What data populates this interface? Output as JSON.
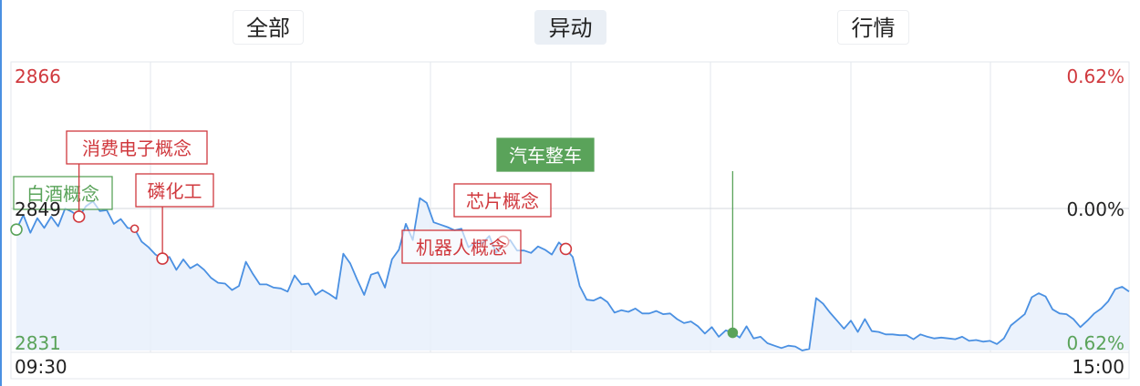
{
  "tabs": [
    {
      "label": "全部",
      "active": false
    },
    {
      "label": "异动",
      "active": true
    },
    {
      "label": "行情",
      "active": false
    }
  ],
  "chart_data": {
    "type": "line",
    "y_labels": {
      "top": "2866",
      "mid": "2849",
      "bottom": "2831"
    },
    "pct_labels": {
      "top": "0.62%",
      "mid": "0.00%",
      "bottom": "0.62%"
    },
    "x_labels": {
      "start": "09:30",
      "end": "15:00"
    },
    "ylim": [
      2831,
      2866
    ],
    "base": 2849,
    "colors": {
      "up": "#d0393e",
      "down": "#5aa35a",
      "line": "#4a90e2",
      "area": "#e7f0fb",
      "grid": "#e3e7ec"
    },
    "series": [
      {
        "values": [
          2846.0,
          2847.8,
          2845.6,
          2847.4,
          2846.2,
          2847.6,
          2846.4,
          2848.6,
          2848.2,
          2847.6,
          2848.9,
          2849.5,
          2848.3,
          2848.4,
          2846.7,
          2847.3,
          2846.2,
          2846.1,
          2844.5,
          2843.8,
          2842.9,
          2842.4,
          2842.6,
          2841.0,
          2842.3,
          2841.2,
          2841.7,
          2841.0,
          2840.0,
          2839.4,
          2839.3,
          2838.5,
          2839.0,
          2842.0,
          2840.5,
          2839.2,
          2839.2,
          2838.8,
          2838.7,
          2838.3,
          2840.3,
          2839.2,
          2839.3,
          2837.9,
          2838.5,
          2838.0,
          2837.4,
          2843.0,
          2841.8,
          2839.8,
          2837.9,
          2840.4,
          2840.7,
          2838.8,
          2842.3,
          2843.5,
          2846.7,
          2844.7,
          2849.9,
          2849.3,
          2846.9,
          2846.6,
          2846.3,
          2845.9,
          2846.1,
          2843.8,
          2844.4,
          2844.3,
          2845.2,
          2843.1,
          2844.5,
          2844.7,
          2843.4,
          2843.4,
          2843.1,
          2843.9,
          2843.5,
          2842.9,
          2844.4,
          2843.6,
          2842.6,
          2839.0,
          2837.3,
          2837.2,
          2837.6,
          2837.0,
          2835.7,
          2836.0,
          2835.8,
          2836.2,
          2835.6,
          2835.6,
          2835.9,
          2835.5,
          2835.6,
          2834.9,
          2834.4,
          2834.6,
          2834.0,
          2833.1,
          2833.9,
          2832.7,
          2833.5,
          2833.2,
          2832.6,
          2834.0,
          2832.5,
          2832.7,
          2831.9,
          2831.6,
          2831.3,
          2831.6,
          2831.5,
          2831.0,
          2831.2,
          2837.5,
          2836.8,
          2835.7,
          2834.7,
          2833.7,
          2834.7,
          2833.3,
          2834.9,
          2833.4,
          2833.3,
          2833.0,
          2833.0,
          2832.9,
          2832.9,
          2832.4,
          2833.0,
          2832.7,
          2832.5,
          2832.6,
          2832.5,
          2832.4,
          2832.7,
          2832.2,
          2832.3,
          2832.1,
          2832.2,
          2831.8,
          2832.5,
          2834.1,
          2834.8,
          2835.5,
          2837.6,
          2838.1,
          2837.7,
          2836.1,
          2835.6,
          2835.5,
          2834.9,
          2833.9,
          2834.7,
          2835.6,
          2836.2,
          2837.1,
          2838.6,
          2838.9,
          2838.3
        ]
      }
    ],
    "annotations": [
      {
        "label": "白酒概念",
        "color": "down",
        "marker": "open"
      },
      {
        "label": "消费电子概念",
        "color": "up",
        "marker": "open"
      },
      {
        "label": "",
        "color": "up",
        "marker": "small"
      },
      {
        "label": "磷化工",
        "color": "up",
        "marker": "open"
      },
      {
        "label": "",
        "color": "up",
        "marker": "open"
      },
      {
        "label": "芯片概念",
        "color": "up",
        "marker": "none"
      },
      {
        "label": "机器人概念",
        "color": "up",
        "marker": "open"
      },
      {
        "label": "汽车整车",
        "color": "down",
        "marker": "filled"
      }
    ]
  }
}
